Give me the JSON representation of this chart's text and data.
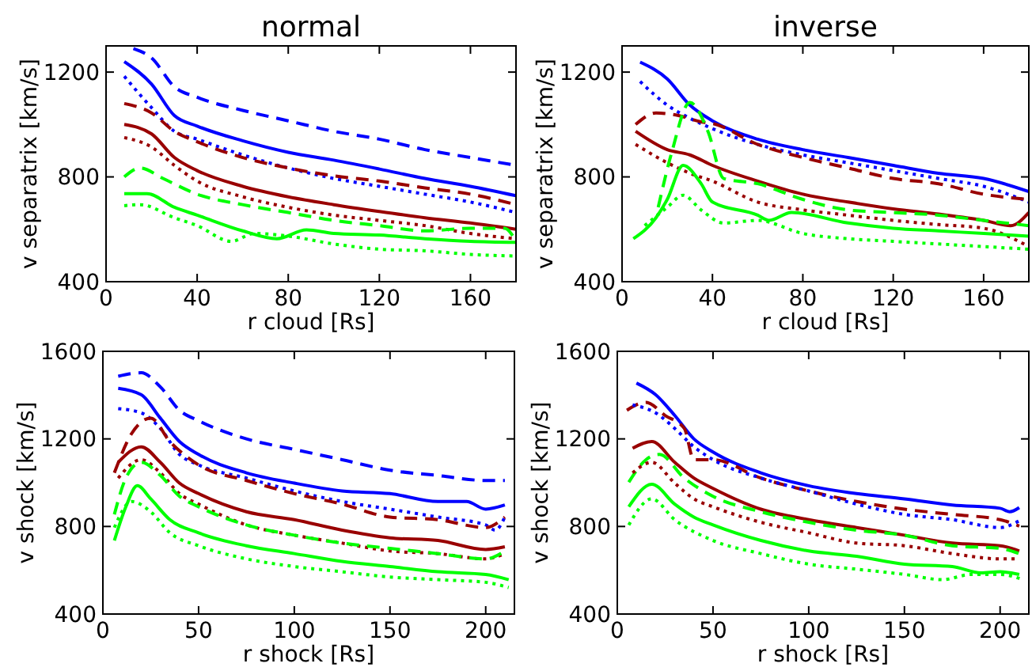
{
  "chart_data": [
    {
      "type": "line",
      "title": "normal",
      "xlabel": "r cloud [Rs]",
      "ylabel": "v separatrix [km/s]",
      "xlim": [
        0,
        180
      ],
      "xticks": [
        0,
        40,
        80,
        120,
        160
      ],
      "ylim": [
        400,
        1300
      ],
      "yticks": [
        400,
        800,
        1200
      ],
      "grid": false,
      "series": [
        {
          "color": "#0000ff",
          "line_style": "dashed",
          "x": [
            12,
            20,
            30,
            40,
            60,
            80,
            100,
            120,
            140,
            160,
            180
          ],
          "values": [
            1290,
            1254,
            1144,
            1104,
            1054,
            1014,
            974,
            944,
            904,
            874,
            844
          ]
        },
        {
          "color": "#0000ff",
          "line_style": "solid",
          "x": [
            8,
            20,
            30,
            40,
            60,
            80,
            100,
            120,
            140,
            160,
            180
          ],
          "values": [
            1240,
            1154,
            1034,
            994,
            938,
            894,
            864,
            830,
            794,
            764,
            728
          ]
        },
        {
          "color": "#0000ff",
          "line_style": "dotted",
          "x": [
            8,
            20,
            30,
            40,
            60,
            80,
            100,
            120,
            140,
            160,
            180
          ],
          "values": [
            1184,
            1064,
            974,
            944,
            884,
            834,
            794,
            764,
            734,
            704,
            664
          ]
        },
        {
          "color": "#990000",
          "line_style": "dashed",
          "x": [
            8,
            20,
            30,
            40,
            60,
            80,
            100,
            120,
            140,
            160,
            180
          ],
          "values": [
            1080,
            1044,
            974,
            934,
            874,
            834,
            804,
            784,
            758,
            734,
            694
          ]
        },
        {
          "color": "#990000",
          "line_style": "solid",
          "x": [
            8,
            20,
            30,
            40,
            60,
            80,
            100,
            120,
            140,
            160,
            180
          ],
          "values": [
            1000,
            964,
            874,
            824,
            764,
            724,
            694,
            668,
            644,
            624,
            600
          ]
        },
        {
          "color": "#990000",
          "line_style": "dotted",
          "x": [
            8,
            20,
            30,
            40,
            60,
            80,
            100,
            120,
            140,
            160,
            180
          ],
          "values": [
            950,
            914,
            844,
            784,
            724,
            684,
            654,
            634,
            614,
            584,
            564
          ]
        },
        {
          "color": "#00ff00",
          "line_style": "dashed",
          "x": [
            8,
            15,
            25,
            40,
            60,
            80,
            100,
            120,
            140,
            160,
            175,
            180
          ],
          "values": [
            800,
            834,
            794,
            734,
            694,
            664,
            634,
            614,
            594,
            604,
            604,
            554
          ]
        },
        {
          "color": "#00ff00",
          "line_style": "solid",
          "x": [
            8,
            18,
            30,
            40,
            60,
            75,
            88,
            100,
            120,
            140,
            160,
            180
          ],
          "values": [
            736,
            736,
            684,
            654,
            594,
            564,
            598,
            584,
            578,
            564,
            554,
            550
          ]
        },
        {
          "color": "#00ff00",
          "line_style": "dotted",
          "x": [
            8,
            15,
            30,
            40,
            55,
            65,
            80,
            100,
            120,
            140,
            160,
            180
          ],
          "values": [
            690,
            694,
            644,
            614,
            554,
            584,
            574,
            544,
            524,
            518,
            504,
            498
          ]
        }
      ]
    },
    {
      "type": "line",
      "title": "inverse",
      "xlabel": "r cloud [Rs]",
      "ylabel": "v separatrix [km/s]",
      "xlim": [
        0,
        180
      ],
      "xticks": [
        0,
        40,
        80,
        120,
        160
      ],
      "ylim": [
        400,
        1300
      ],
      "yticks": [
        400,
        800,
        1200
      ],
      "grid": false,
      "series": [
        {
          "color": "#0000ff",
          "line_style": "solid",
          "x": [
            8,
            20,
            30,
            40,
            60,
            80,
            100,
            120,
            140,
            160,
            180
          ],
          "values": [
            1238,
            1174,
            1074,
            1014,
            944,
            904,
            874,
            844,
            814,
            794,
            744
          ]
        },
        {
          "color": "#0000ff",
          "line_style": "dotted",
          "x": [
            8,
            20,
            30,
            40,
            60,
            80,
            100,
            120,
            140,
            160,
            180
          ],
          "values": [
            1164,
            1074,
            1024,
            984,
            924,
            884,
            854,
            824,
            794,
            764,
            704
          ]
        },
        {
          "color": "#990000",
          "line_style": "dashed",
          "x": [
            6,
            15,
            25,
            35,
            40,
            60,
            80,
            100,
            120,
            140,
            160,
            180
          ],
          "values": [
            1000,
            1044,
            1034,
            1010,
            1004,
            924,
            874,
            834,
            794,
            774,
            734,
            714
          ]
        },
        {
          "color": "#990000",
          "line_style": "solid",
          "x": [
            6,
            20,
            30,
            40,
            60,
            80,
            100,
            120,
            140,
            160,
            172,
            180
          ],
          "values": [
            974,
            904,
            884,
            844,
            784,
            734,
            704,
            678,
            658,
            634,
            614,
            664
          ]
        },
        {
          "color": "#990000",
          "line_style": "dotted",
          "x": [
            6,
            20,
            30,
            40,
            60,
            80,
            100,
            120,
            140,
            160,
            180
          ],
          "values": [
            924,
            854,
            814,
            784,
            704,
            674,
            654,
            634,
            618,
            604,
            534
          ]
        },
        {
          "color": "#00ff00",
          "line_style": "dashed",
          "x": [
            16,
            22,
            30,
            38,
            45,
            60,
            80,
            100,
            120,
            140,
            160,
            180
          ],
          "values": [
            684,
            894,
            1084,
            974,
            794,
            774,
            714,
            674,
            664,
            654,
            634,
            614
          ]
        },
        {
          "color": "#00ff00",
          "line_style": "solid",
          "x": [
            5,
            15,
            20,
            27,
            35,
            40,
            60,
            65,
            75,
            100,
            120,
            140,
            160,
            180
          ],
          "values": [
            564,
            644,
            714,
            844,
            774,
            704,
            654,
            634,
            664,
            624,
            604,
            594,
            584,
            574
          ]
        },
        {
          "color": "#00ff00",
          "line_style": "dotted",
          "x": [
            10,
            20,
            27,
            35,
            45,
            60,
            80,
            100,
            120,
            140,
            160,
            180
          ],
          "values": [
            614,
            684,
            730,
            674,
            624,
            634,
            584,
            564,
            554,
            544,
            534,
            524
          ]
        }
      ]
    },
    {
      "type": "line",
      "xlabel": "r shock [Rs]",
      "ylabel": "v shock [km/s]",
      "xlim": [
        0,
        215
      ],
      "xticks": [
        0,
        50,
        100,
        150,
        200
      ],
      "ylim": [
        400,
        1600
      ],
      "yticks": [
        400,
        800,
        1200,
        1600
      ],
      "grid": false,
      "series": [
        {
          "color": "#0000ff",
          "line_style": "dashed",
          "x": [
            8,
            20,
            30,
            40,
            50,
            75,
            100,
            125,
            150,
            175,
            200,
            210
          ],
          "values": [
            1486,
            1502,
            1438,
            1331,
            1283,
            1200,
            1152,
            1105,
            1057,
            1033,
            1010,
            1010
          ]
        },
        {
          "color": "#0000ff",
          "line_style": "solid",
          "x": [
            8,
            20,
            30,
            40,
            50,
            75,
            100,
            125,
            150,
            175,
            190,
            200,
            210
          ],
          "values": [
            1431,
            1402,
            1295,
            1188,
            1129,
            1045,
            998,
            962,
            950,
            914,
            914,
            879,
            898
          ]
        },
        {
          "color": "#0000ff",
          "line_style": "dotted",
          "x": [
            8,
            20,
            30,
            40,
            50,
            75,
            100,
            125,
            150,
            175,
            200,
            205,
            210
          ],
          "values": [
            1338,
            1319,
            1248,
            1129,
            1081,
            1021,
            962,
            914,
            879,
            843,
            807,
            783,
            843
          ]
        },
        {
          "color": "#990000",
          "line_style": "dashed",
          "x": [
            6,
            15,
            25,
            35,
            50,
            75,
            100,
            125,
            150,
            175,
            200,
            210
          ],
          "values": [
            1045,
            1224,
            1295,
            1188,
            1081,
            1010,
            950,
            902,
            843,
            831,
            795,
            843
          ]
        },
        {
          "color": "#990000",
          "line_style": "solid",
          "x": [
            8,
            20,
            30,
            40,
            50,
            75,
            100,
            125,
            150,
            175,
            200,
            210
          ],
          "values": [
            1093,
            1164,
            1093,
            998,
            950,
            867,
            831,
            783,
            748,
            736,
            695,
            707
          ]
        },
        {
          "color": "#990000",
          "line_style": "dotted",
          "x": [
            8,
            20,
            30,
            40,
            50,
            75,
            100,
            125,
            150,
            175,
            200,
            210
          ],
          "values": [
            1021,
            1105,
            1045,
            950,
            902,
            807,
            760,
            724,
            688,
            676,
            652,
            676
          ]
        },
        {
          "color": "#00ff00",
          "line_style": "dashed",
          "x": [
            6,
            12,
            20,
            30,
            40,
            50,
            75,
            100,
            125,
            150,
            175,
            200,
            210
          ],
          "values": [
            855,
            1021,
            1093,
            1033,
            938,
            890,
            807,
            760,
            724,
            700,
            676,
            652,
            688
          ]
        },
        {
          "color": "#00ff00",
          "line_style": "solid",
          "x": [
            6,
            12,
            18,
            25,
            35,
            50,
            75,
            100,
            125,
            150,
            175,
            200,
            212
          ],
          "values": [
            736,
            890,
            986,
            926,
            831,
            771,
            712,
            676,
            640,
            617,
            593,
            581,
            557
          ]
        },
        {
          "color": "#00ff00",
          "line_style": "dotted",
          "x": [
            6,
            15,
            25,
            35,
            50,
            75,
            100,
            125,
            150,
            175,
            200,
            212
          ],
          "values": [
            795,
            914,
            867,
            771,
            712,
            652,
            617,
            593,
            569,
            557,
            545,
            521
          ]
        }
      ]
    },
    {
      "type": "line",
      "xlabel": "r shock [Rs]",
      "ylabel": "v shock [km/s]",
      "xlim": [
        0,
        215
      ],
      "xticks": [
        0,
        50,
        100,
        150,
        200
      ],
      "ylim": [
        400,
        1600
      ],
      "yticks": [
        400,
        800,
        1200,
        1600
      ],
      "grid": false,
      "series": [
        {
          "color": "#0000ff",
          "line_style": "solid",
          "x": [
            10,
            20,
            30,
            40,
            50,
            75,
            100,
            125,
            150,
            175,
            200,
            205,
            210
          ],
          "values": [
            1455,
            1402,
            1307,
            1200,
            1140,
            1045,
            986,
            950,
            926,
            898,
            883,
            867,
            886
          ]
        },
        {
          "color": "#990000",
          "line_style": "dashed",
          "x": [
            5,
            15,
            25,
            35,
            40,
            50,
            75,
            100,
            125,
            150,
            175,
            200,
            210
          ],
          "values": [
            1331,
            1367,
            1307,
            1248,
            1105,
            1105,
            1021,
            962,
            914,
            879,
            855,
            831,
            802
          ]
        },
        {
          "color": "#0000ff",
          "line_style": "dotted",
          "x": [
            8,
            20,
            30,
            40,
            50,
            75,
            100,
            125,
            150,
            175,
            200,
            210
          ],
          "values": [
            1355,
            1319,
            1248,
            1164,
            1105,
            1021,
            962,
            902,
            855,
            831,
            795,
            826
          ]
        },
        {
          "color": "#990000",
          "line_style": "solid",
          "x": [
            8,
            18,
            30,
            40,
            50,
            75,
            100,
            125,
            150,
            175,
            200,
            210
          ],
          "values": [
            1157,
            1188,
            1093,
            1021,
            974,
            879,
            831,
            795,
            760,
            724,
            712,
            688
          ]
        },
        {
          "color": "#00ff00",
          "line_style": "dashed",
          "x": [
            6,
            15,
            22,
            35,
            50,
            75,
            100,
            125,
            150,
            175,
            200,
            210
          ],
          "values": [
            1002,
            1105,
            1129,
            1021,
            938,
            867,
            819,
            783,
            760,
            712,
            700,
            676
          ]
        },
        {
          "color": "#990000",
          "line_style": "dotted",
          "x": [
            8,
            18,
            30,
            40,
            50,
            75,
            100,
            125,
            150,
            175,
            200,
            210
          ],
          "values": [
            1045,
            1093,
            998,
            926,
            890,
            819,
            771,
            724,
            712,
            676,
            652,
            652
          ]
        },
        {
          "color": "#00ff00",
          "line_style": "solid",
          "x": [
            6,
            18,
            30,
            40,
            50,
            75,
            100,
            125,
            150,
            175,
            190,
            200,
            210
          ],
          "values": [
            890,
            993,
            902,
            843,
            807,
            736,
            688,
            664,
            628,
            617,
            588,
            593,
            581
          ]
        },
        {
          "color": "#00ff00",
          "line_style": "dotted",
          "x": [
            6,
            18,
            30,
            50,
            75,
            100,
            125,
            150,
            170,
            185,
            200,
            212
          ],
          "values": [
            807,
            926,
            831,
            736,
            676,
            628,
            605,
            581,
            557,
            581,
            581,
            557
          ]
        }
      ]
    }
  ]
}
